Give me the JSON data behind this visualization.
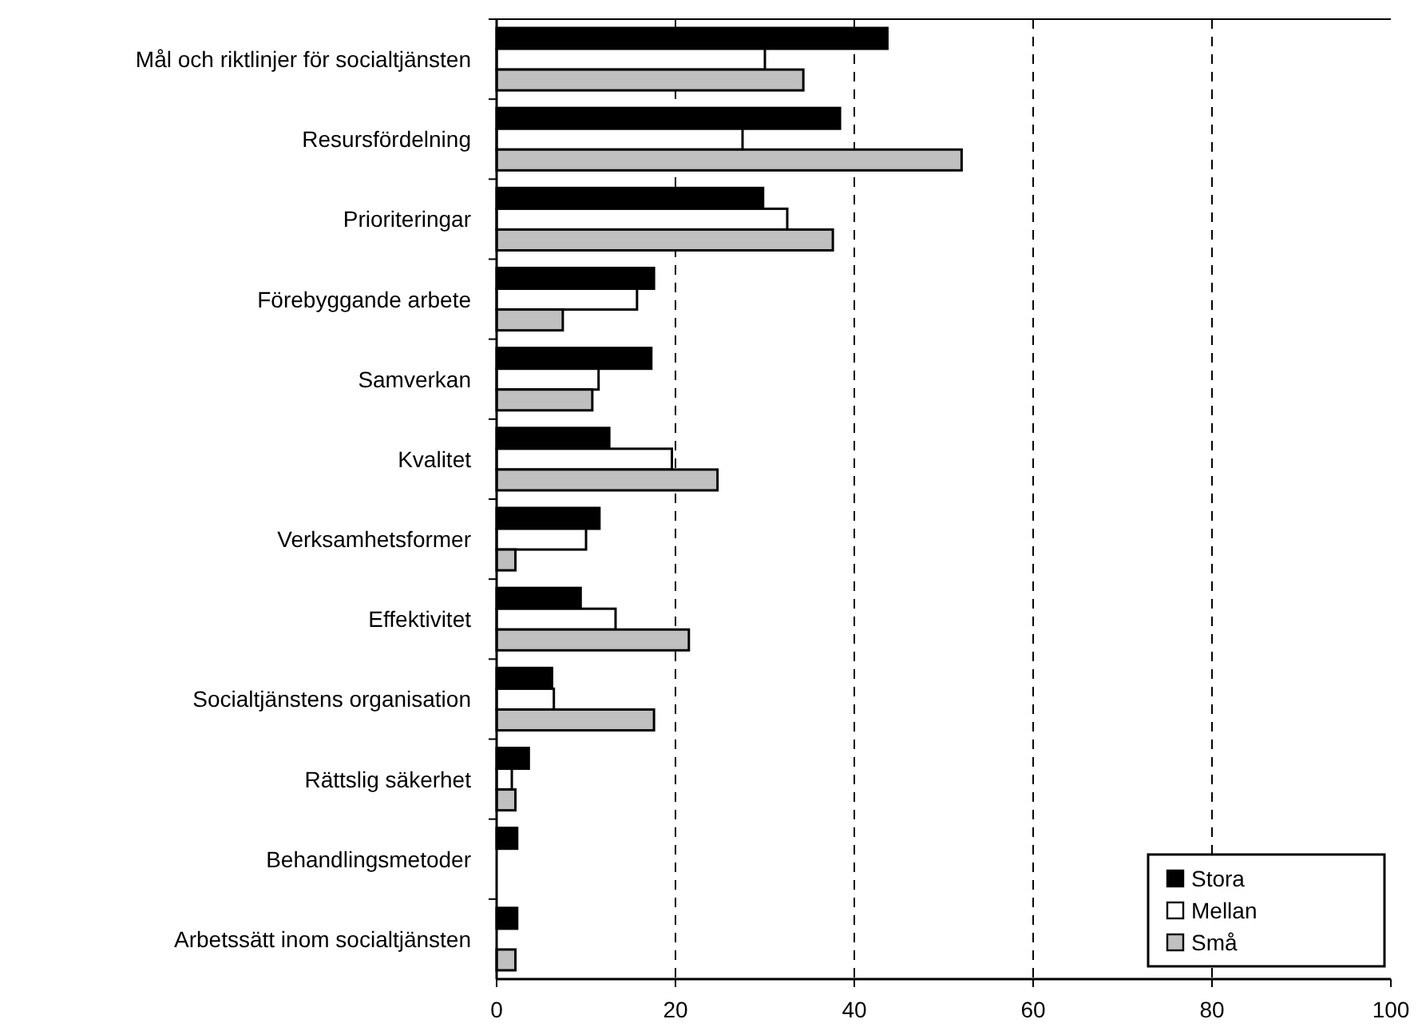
{
  "chart_data": {
    "type": "bar",
    "orientation": "horizontal",
    "categories": [
      "Mål och riktlinjer för socialtjänsten",
      "Resursfördelning",
      "Prioriteringar",
      "Förebyggande arbete",
      "Samverkan",
      "Kvalitet",
      "Verksamhetsformer",
      "Effektivitet",
      "Socialtjänstens organisation",
      "Rättslig säkerhet",
      "Behandlingsmetoder",
      "Arbetssätt inom socialtjänsten"
    ],
    "series": [
      {
        "name": "Stora",
        "color": "#000000",
        "values": [
          43.7,
          38.4,
          29.8,
          17.6,
          17.3,
          12.6,
          11.5,
          9.4,
          6.2,
          3.6,
          2.3,
          2.3
        ]
      },
      {
        "name": "Mellan",
        "color": "#ffffff",
        "values": [
          30.0,
          27.5,
          32.5,
          15.7,
          11.4,
          19.6,
          10.0,
          13.3,
          6.4,
          1.7,
          0,
          0
        ]
      },
      {
        "name": "Små",
        "color": "#c0c0c0",
        "values": [
          34.3,
          52.0,
          37.6,
          7.4,
          10.7,
          24.7,
          2.1,
          21.5,
          17.6,
          2.1,
          0,
          2.1
        ]
      }
    ],
    "xlim": [
      0,
      100
    ],
    "xticks": [
      0,
      20,
      40,
      60,
      80,
      100
    ],
    "grid": "x",
    "legend": "bottom right"
  }
}
